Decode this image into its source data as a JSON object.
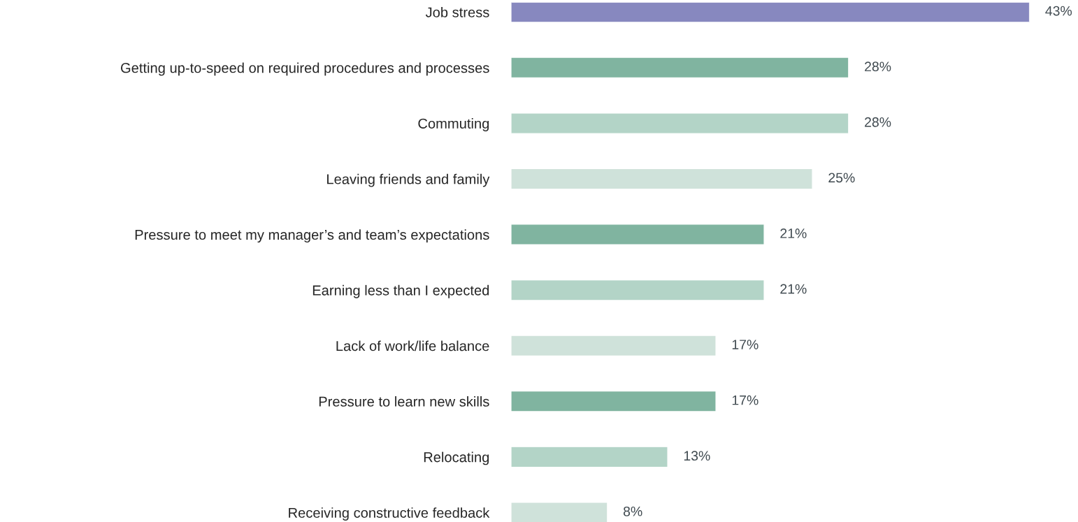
{
  "chart_data": {
    "type": "bar",
    "orientation": "horizontal",
    "value_labels": [
      "43%",
      "28%",
      "28%",
      "25%",
      "21%",
      "21%",
      "17%",
      "17%",
      "13%",
      "8%"
    ],
    "grid": false,
    "legend": false,
    "categories": [
      "Job stress",
      "Getting up-to-speed on required procedures and processes",
      "Commuting",
      "Leaving friends and family",
      "Pressure to meet my manager’s and team’s expectations",
      "Earning less than I expected",
      "Lack of work/life balance",
      "Pressure to learn new skills",
      "Relocating",
      "Receiving constructive feedback"
    ],
    "values": [
      43,
      28,
      28,
      25,
      21,
      21,
      17,
      17,
      13,
      8
    ],
    "colors": [
      "#8788bf",
      "#80b4a0",
      "#b3d4c7",
      "#cfe2da",
      "#80b4a0",
      "#b3d4c7",
      "#cfe2da",
      "#80b4a0",
      "#b3d4c7",
      "#cfe2da"
    ]
  }
}
